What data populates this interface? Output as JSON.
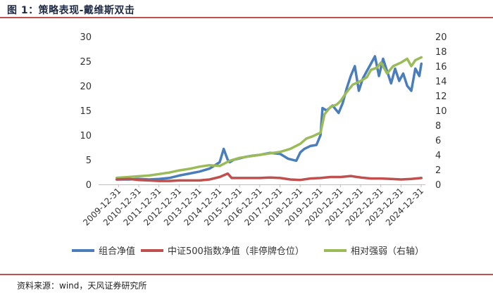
{
  "figure": {
    "title": "图 1：策略表现-戴维斯双击",
    "source": "资料来源：wind，天风证券研究所"
  },
  "chart_data": {
    "type": "line",
    "title": "",
    "xlabel": "",
    "ylabel": "",
    "x_ticks": [
      "2009-12-31",
      "2010-12-31",
      "2011-12-31",
      "2012-12-31",
      "2013-12-31",
      "2014-12-31",
      "2015-12-31",
      "2016-12-31",
      "2017-12-31",
      "2018-12-31",
      "2019-12-31",
      "2020-12-31",
      "2021-12-31",
      "2022-12-31",
      "2023-12-31",
      "2024-12-31"
    ],
    "x_range": [
      2009.0,
      2025.2
    ],
    "y_left": {
      "range": [
        0,
        30
      ],
      "ticks": [
        "0",
        "5",
        "10",
        "15",
        "20",
        "25",
        "30"
      ]
    },
    "y_right": {
      "range": [
        0,
        20
      ],
      "ticks": [
        "0",
        "2",
        "4",
        "6",
        "8",
        "10",
        "12",
        "14",
        "16",
        "18",
        "20"
      ]
    },
    "grid": false,
    "legend_position": "bottom",
    "series": [
      {
        "name": "组合净值",
        "axis": "left",
        "color": "#4a7ebb",
        "x": [
          2009.9,
          2010.5,
          2011.0,
          2011.5,
          2012.0,
          2012.5,
          2013.0,
          2013.5,
          2014.0,
          2014.5,
          2015.0,
          2015.2,
          2015.4,
          2015.5,
          2015.7,
          2016.0,
          2016.3,
          2016.6,
          2017.0,
          2017.5,
          2018.0,
          2018.4,
          2018.8,
          2019.0,
          2019.2,
          2019.5,
          2019.8,
          2020.0,
          2020.1,
          2020.3,
          2020.6,
          2020.9,
          2021.1,
          2021.3,
          2021.5,
          2021.7,
          2021.9,
          2022.1,
          2022.3,
          2022.5,
          2022.7,
          2022.9,
          2023.1,
          2023.3,
          2023.5,
          2023.7,
          2023.9,
          2024.1,
          2024.3,
          2024.5,
          2024.7,
          2024.9,
          2025.0
        ],
        "y": [
          1.0,
          1.0,
          1.1,
          1.0,
          1.1,
          1.3,
          1.8,
          2.2,
          2.6,
          3.2,
          4.5,
          7.2,
          5.0,
          4.5,
          5.0,
          5.3,
          5.6,
          5.8,
          6.0,
          6.4,
          6.2,
          5.2,
          4.8,
          6.5,
          7.2,
          7.8,
          8.0,
          10.0,
          15.5,
          15.0,
          16.0,
          14.5,
          16.5,
          19.5,
          22.0,
          24.0,
          19.0,
          21.5,
          23.0,
          24.5,
          26.0,
          22.0,
          25.5,
          23.0,
          20.5,
          23.5,
          21.0,
          22.5,
          20.0,
          19.0,
          23.5,
          22.0,
          24.5
        ]
      },
      {
        "name": "中证500指数净值（非停牌仓位）",
        "axis": "left",
        "color": "#c0504d",
        "x": [
          2009.9,
          2010.5,
          2011.0,
          2011.5,
          2012.0,
          2012.5,
          2013.0,
          2013.5,
          2014.0,
          2014.5,
          2015.0,
          2015.4,
          2015.6,
          2016.0,
          2016.5,
          2017.0,
          2017.5,
          2018.0,
          2018.5,
          2019.0,
          2019.5,
          2020.0,
          2020.5,
          2021.0,
          2021.5,
          2022.0,
          2022.5,
          2023.0,
          2023.5,
          2024.0,
          2024.5,
          2025.0
        ],
        "y": [
          1.0,
          1.1,
          0.9,
          0.8,
          0.7,
          0.7,
          0.8,
          0.8,
          0.8,
          1.0,
          1.5,
          2.2,
          1.3,
          1.3,
          1.3,
          1.3,
          1.4,
          1.3,
          1.0,
          0.9,
          1.2,
          1.3,
          1.5,
          1.5,
          1.7,
          1.4,
          1.2,
          1.2,
          1.1,
          1.0,
          1.1,
          1.3
        ]
      },
      {
        "name": "相对强弱（右轴）",
        "axis": "right",
        "color": "#9bbb59",
        "x": [
          2009.9,
          2010.5,
          2011.0,
          2011.5,
          2012.0,
          2012.5,
          2013.0,
          2013.5,
          2014.0,
          2014.5,
          2015.0,
          2015.5,
          2016.0,
          2016.5,
          2017.0,
          2017.5,
          2018.0,
          2018.5,
          2019.0,
          2019.3,
          2019.6,
          2020.0,
          2020.2,
          2020.5,
          2020.8,
          2021.0,
          2021.3,
          2021.6,
          2022.0,
          2022.3,
          2022.5,
          2022.8,
          2023.0,
          2023.3,
          2023.6,
          2024.0,
          2024.3,
          2024.5,
          2024.7,
          2025.0
        ],
        "y": [
          0.9,
          1.0,
          1.1,
          1.2,
          1.4,
          1.6,
          1.9,
          2.1,
          2.4,
          2.6,
          2.5,
          3.2,
          3.6,
          3.8,
          4.0,
          4.2,
          4.4,
          4.8,
          5.5,
          6.2,
          6.5,
          7.0,
          9.5,
          10.5,
          10.8,
          11.3,
          12.5,
          13.5,
          14.0,
          14.5,
          15.5,
          15.8,
          16.5,
          15.0,
          16.0,
          16.5,
          17.0,
          16.0,
          16.8,
          17.2
        ]
      }
    ]
  }
}
